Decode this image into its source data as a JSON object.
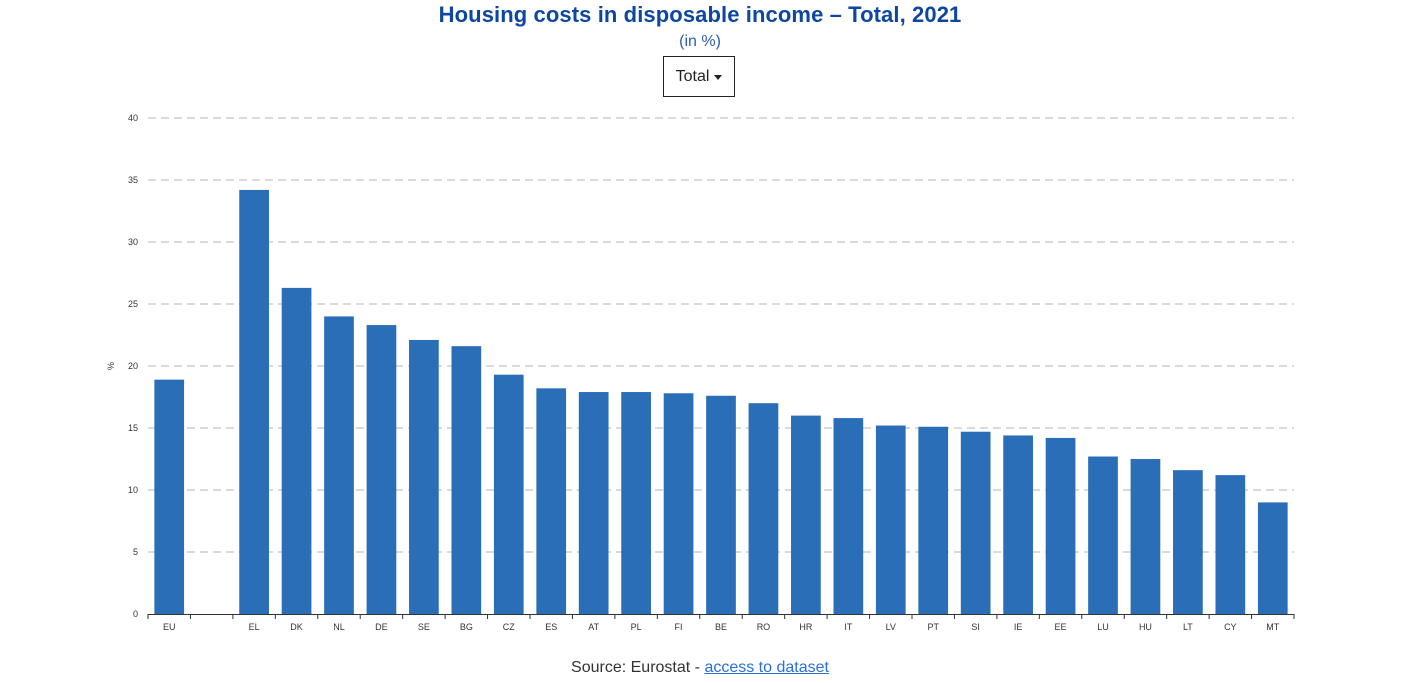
{
  "chart_data": {
    "type": "bar",
    "title": "Housing costs in disposable income – Total, 2021",
    "subtitle": "(in %)",
    "ylabel": "%",
    "xlabel": "",
    "ylim": [
      0,
      40
    ],
    "yticks": [
      0,
      5,
      10,
      15,
      20,
      25,
      30,
      35,
      40
    ],
    "grid": true,
    "categories": [
      "EU",
      "",
      "EL",
      "DK",
      "NL",
      "DE",
      "SE",
      "BG",
      "CZ",
      "ES",
      "AT",
      "PL",
      "FI",
      "BE",
      "RO",
      "HR",
      "IT",
      "LV",
      "PT",
      "SI",
      "IE",
      "EE",
      "LU",
      "HU",
      "LT",
      "CY",
      "MT"
    ],
    "values": [
      18.9,
      null,
      34.2,
      26.3,
      24.0,
      23.3,
      22.1,
      21.6,
      19.3,
      18.2,
      17.9,
      17.9,
      17.8,
      17.6,
      17.0,
      16.0,
      15.8,
      15.2,
      15.1,
      14.7,
      14.4,
      14.2,
      12.7,
      12.5,
      11.6,
      11.2,
      9.0
    ],
    "bar_color": "#2a6eb7"
  },
  "filter": {
    "selected": "Total"
  },
  "source": {
    "prefix": "Source: Eurostat - ",
    "link_text": "access to dataset"
  }
}
